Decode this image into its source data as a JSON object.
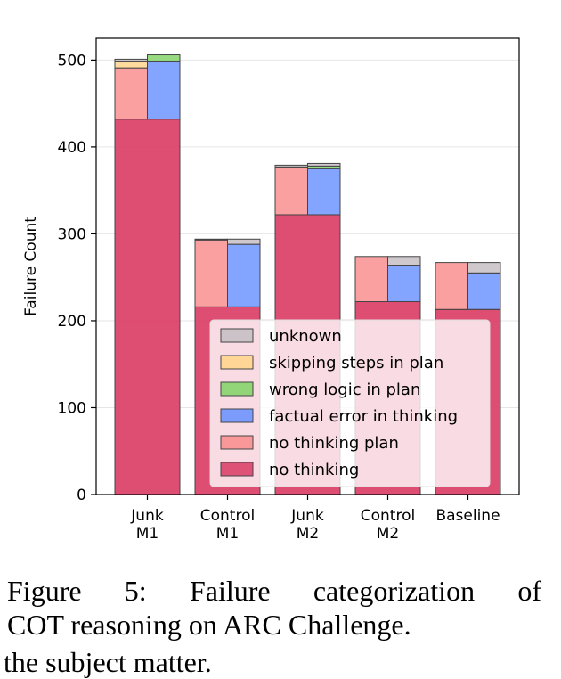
{
  "chart_data": {
    "type": "bar",
    "stacked": true,
    "ylabel": "Failure Count",
    "ylim": [
      0,
      525
    ],
    "yticks": [
      0,
      100,
      200,
      300,
      400,
      500
    ],
    "grid": true,
    "legend_position": "lower-right",
    "categories": [
      {
        "lines": [
          "Junk",
          "M1"
        ]
      },
      {
        "lines": [
          "Control",
          "M1"
        ]
      },
      {
        "lines": [
          "Junk",
          "M2"
        ]
      },
      {
        "lines": [
          "Control",
          "M2"
        ]
      },
      {
        "lines": [
          "Baseline"
        ]
      }
    ],
    "legend": [
      {
        "name": "unknown",
        "color": "#c7c0c4"
      },
      {
        "name": "skipping steps in plan",
        "color": "#ffd58c"
      },
      {
        "name": "wrong logic in plan",
        "color": "#86d46b"
      },
      {
        "name": "factual error in thinking",
        "color": "#6d95ff"
      },
      {
        "name": "no thinking plan",
        "color": "#fa8f8f"
      },
      {
        "name": "no thinking",
        "color": "#dc436a"
      }
    ],
    "shared_base": "no thinking",
    "no_thinking": [
      432,
      216,
      322,
      222,
      213
    ],
    "left_stack": {
      "segments": [
        "no thinking plan",
        "skipping steps in plan",
        "wrong logic in plan",
        "unknown"
      ],
      "values": [
        [
          59,
          7,
          0,
          3
        ],
        [
          77,
          0,
          0,
          1
        ],
        [
          55,
          0,
          0,
          2
        ],
        [
          52,
          0,
          0,
          0
        ],
        [
          54,
          0,
          0,
          0
        ]
      ]
    },
    "right_stack": {
      "segments": [
        "factual error in thinking",
        "wrong logic in plan",
        "unknown"
      ],
      "values": [
        [
          66,
          8,
          0
        ],
        [
          72,
          0,
          6
        ],
        [
          53,
          3,
          3
        ],
        [
          42,
          0,
          10
        ],
        [
          42,
          0,
          12
        ]
      ]
    }
  },
  "caption": {
    "line1_words": [
      "Figure",
      "5:",
      "Failure",
      "categorization",
      "of"
    ],
    "line2": "COT reasoning on ARC Challenge.",
    "line3": "the subject matter."
  }
}
